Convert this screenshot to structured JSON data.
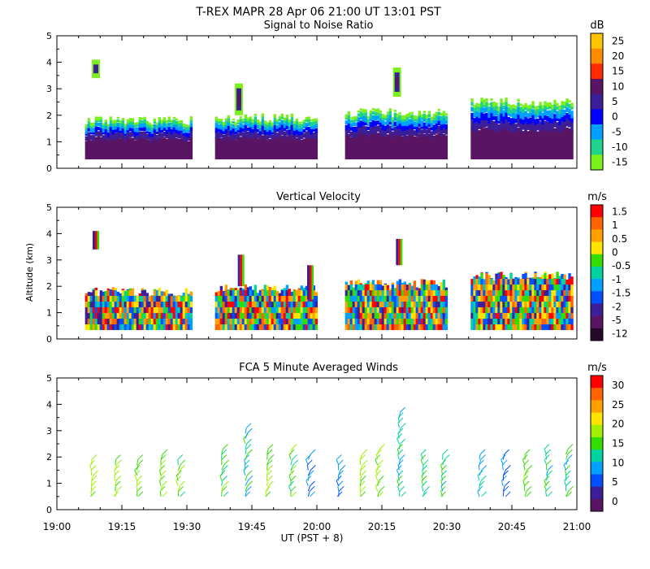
{
  "figure": {
    "title": "T-REX  MAPR 28 Apr 06  21:00 UT  13:01  PST",
    "ylabel": "Altitude (km)",
    "xlabel": "UT  (PST + 8)",
    "xticks": [
      {
        "minutes": 0,
        "label": "19:00"
      },
      {
        "minutes": 15,
        "label": "19:15"
      },
      {
        "minutes": 30,
        "label": "19:30"
      },
      {
        "minutes": 45,
        "label": "19:45"
      },
      {
        "minutes": 60,
        "label": "20:00"
      },
      {
        "minutes": 75,
        "label": "20:15"
      },
      {
        "minutes": 90,
        "label": "20:30"
      },
      {
        "minutes": 105,
        "label": "20:45"
      },
      {
        "minutes": 120,
        "label": "21:00"
      }
    ],
    "yticks": [
      "0",
      "1",
      "2",
      "3",
      "4",
      "5"
    ]
  },
  "chart_data": [
    {
      "type": "heatmap",
      "title": "Signal to Noise Ratio",
      "unit": "dB",
      "xlim_minutes": [
        0,
        120
      ],
      "ylim_km": [
        0,
        5
      ],
      "colorbar": {
        "labels": [
          "25",
          "20",
          "15",
          "10",
          "5",
          "0",
          "-5",
          "-10",
          "-15"
        ],
        "colors": [
          "#ffc400",
          "#ff8c00",
          "#ff2a00",
          "#5a1464",
          "#3c1f96",
          "#0000ff",
          "#00a0ff",
          "#20d28c",
          "#7cf01e"
        ]
      },
      "data_segments": [
        {
          "start": 6.5,
          "end": 31.0,
          "top_km": 1.8
        },
        {
          "start": 36.5,
          "end": 60.0,
          "top_km": 1.9
        },
        {
          "start": 66.5,
          "end": 90.0,
          "top_km": 2.1
        },
        {
          "start": 95.5,
          "end": 119.0,
          "top_km": 2.5
        }
      ],
      "plumes": [
        {
          "minute": 9.0,
          "bottom_km": 3.4,
          "top_km": 4.1
        },
        {
          "minute": 42.0,
          "bottom_km": 2.0,
          "top_km": 3.2
        },
        {
          "minute": 78.5,
          "bottom_km": 2.7,
          "top_km": 3.8
        }
      ]
    },
    {
      "type": "heatmap",
      "title": "Vertical Velocity",
      "unit": "m/s",
      "xlim_minutes": [
        0,
        120
      ],
      "ylim_km": [
        0,
        5
      ],
      "colorbar": {
        "labels": [
          "1.5",
          "1",
          "0.5",
          "0",
          "-0.5",
          "-1",
          "-1.5",
          "-2",
          "-5",
          "-12"
        ],
        "colors": [
          "#ff0000",
          "#ff6400",
          "#ffa000",
          "#ffe400",
          "#33dd00",
          "#00d2a0",
          "#00a0ff",
          "#0050ff",
          "#3c1f96",
          "#5a1464",
          "#240a28"
        ]
      },
      "data_segments": [
        {
          "start": 6.5,
          "end": 31.0,
          "top_km": 1.8
        },
        {
          "start": 36.5,
          "end": 60.0,
          "top_km": 1.9
        },
        {
          "start": 66.5,
          "end": 90.0,
          "top_km": 2.1
        },
        {
          "start": 95.5,
          "end": 119.0,
          "top_km": 2.4
        }
      ],
      "plumes": [
        {
          "minute": 9.0,
          "bottom_km": 3.4,
          "top_km": 4.1
        },
        {
          "minute": 42.5,
          "bottom_km": 2.0,
          "top_km": 3.2
        },
        {
          "minute": 58.5,
          "bottom_km": 1.5,
          "top_km": 2.8
        },
        {
          "minute": 79.0,
          "bottom_km": 2.8,
          "top_km": 3.8
        }
      ]
    },
    {
      "type": "scatter",
      "title": "FCA 5 Minute Averaged Winds",
      "unit": "m/s",
      "xlim_minutes": [
        0,
        120
      ],
      "ylim_km": [
        0,
        5
      ],
      "colorbar": {
        "labels": [
          "30",
          "25",
          "20",
          "15",
          "10",
          "5",
          "0"
        ],
        "colors": [
          "#ff0000",
          "#ff6400",
          "#ffa000",
          "#ffe400",
          "#a0f000",
          "#33dd00",
          "#00d2a0",
          "#00a0ff",
          "#0050ff",
          "#3c1f96",
          "#5a1464"
        ]
      },
      "profiles": [
        {
          "minute": 8.0,
          "bottom_km": 0.5,
          "top_km": 1.8,
          "speed": 16
        },
        {
          "minute": 13.5,
          "bottom_km": 0.5,
          "top_km": 1.9,
          "speed": 15
        },
        {
          "minute": 18.5,
          "bottom_km": 0.5,
          "top_km": 1.9,
          "speed": 15
        },
        {
          "minute": 24.0,
          "bottom_km": 0.5,
          "top_km": 2.0,
          "speed": 15
        },
        {
          "minute": 28.0,
          "bottom_km": 0.5,
          "top_km": 1.8,
          "speed": 14
        },
        {
          "minute": 38.0,
          "bottom_km": 0.5,
          "top_km": 2.2,
          "speed": 13
        },
        {
          "minute": 43.5,
          "bottom_km": 0.5,
          "top_km": 3.0,
          "speed": 10
        },
        {
          "minute": 48.5,
          "bottom_km": 0.5,
          "top_km": 2.2,
          "speed": 15
        },
        {
          "minute": 54.0,
          "bottom_km": 0.5,
          "top_km": 2.2,
          "speed": 14
        },
        {
          "minute": 58.0,
          "bottom_km": 0.5,
          "top_km": 2.1,
          "speed": 6
        },
        {
          "minute": 65.0,
          "bottom_km": 0.5,
          "top_km": 1.8,
          "speed": 6
        },
        {
          "minute": 70.0,
          "bottom_km": 0.5,
          "top_km": 2.0,
          "speed": 14
        },
        {
          "minute": 74.0,
          "bottom_km": 0.5,
          "top_km": 2.3,
          "speed": 15
        },
        {
          "minute": 79.0,
          "bottom_km": 0.5,
          "top_km": 3.6,
          "speed": 10
        },
        {
          "minute": 84.5,
          "bottom_km": 0.5,
          "top_km": 2.0,
          "speed": 12
        },
        {
          "minute": 89.0,
          "bottom_km": 0.5,
          "top_km": 2.0,
          "speed": 11
        },
        {
          "minute": 97.5,
          "bottom_km": 0.5,
          "top_km": 2.0,
          "speed": 10
        },
        {
          "minute": 103.0,
          "bottom_km": 0.5,
          "top_km": 2.0,
          "speed": 6
        },
        {
          "minute": 108.0,
          "bottom_km": 0.5,
          "top_km": 2.1,
          "speed": 13
        },
        {
          "minute": 113.0,
          "bottom_km": 0.5,
          "top_km": 2.4,
          "speed": 11
        },
        {
          "minute": 117.5,
          "bottom_km": 0.5,
          "top_km": 2.3,
          "speed": 10
        }
      ]
    }
  ]
}
